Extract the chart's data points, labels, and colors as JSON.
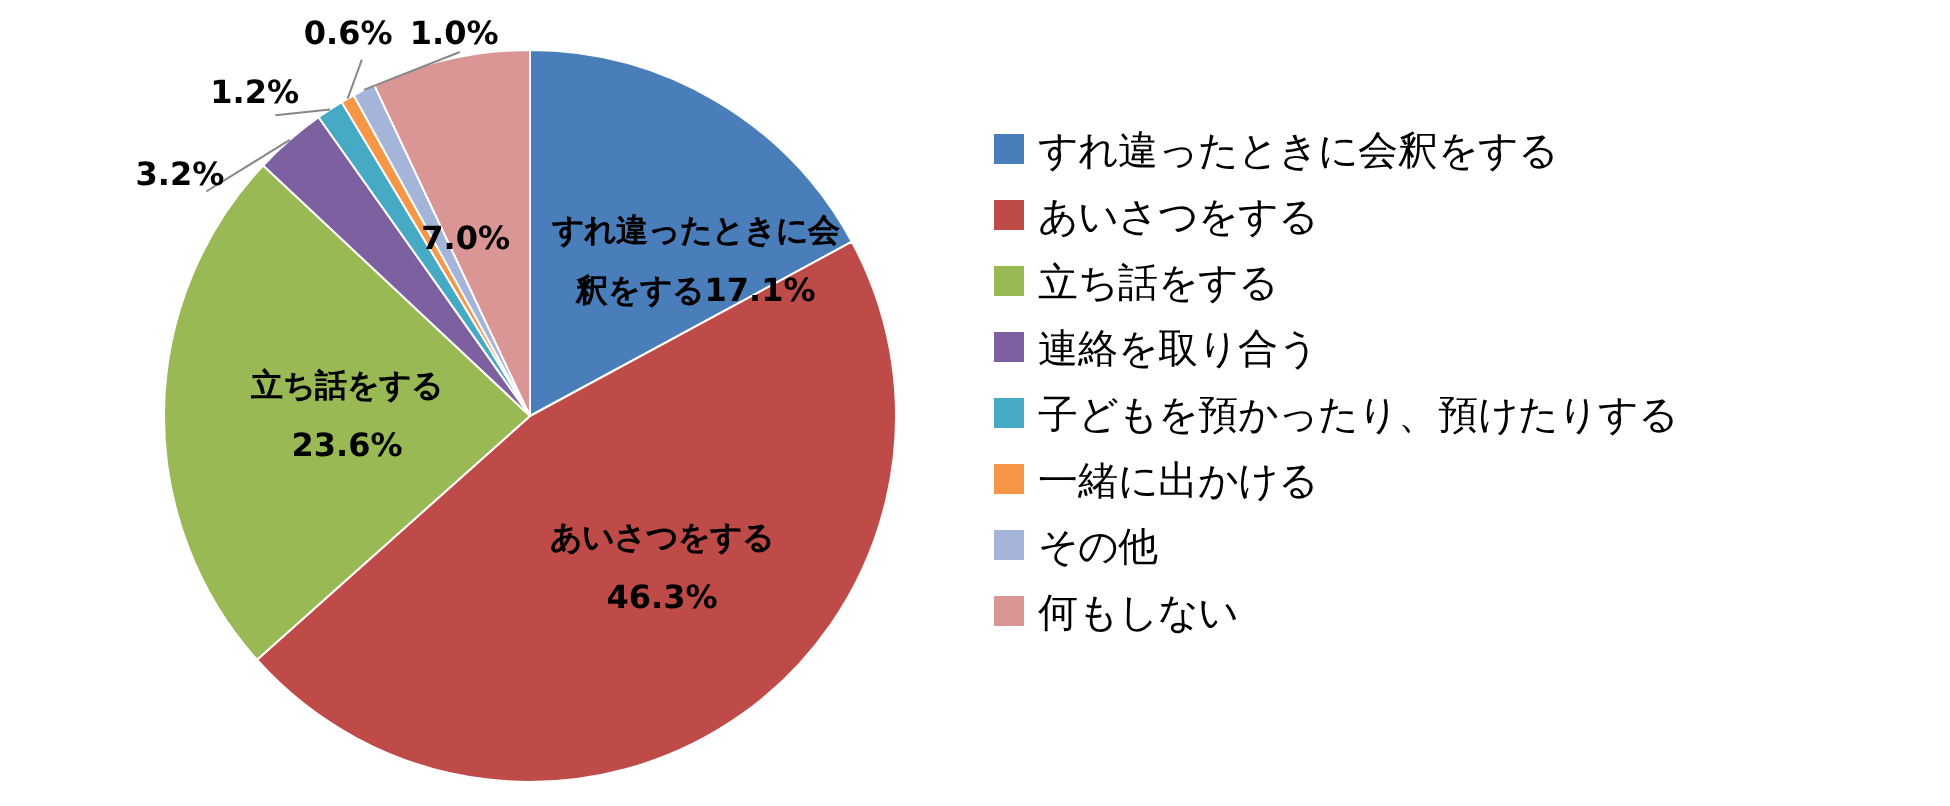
{
  "chart_data": {
    "type": "pie",
    "categories": [
      "すれ違ったときに会釈をする",
      "あいさつをする",
      "立ち話をする",
      "連絡を取り合う",
      "子どもを預かったり、預けたりする",
      "一緒に出かける",
      "その他",
      "何もしない"
    ],
    "values": [
      17.1,
      46.3,
      23.6,
      3.2,
      1.2,
      0.6,
      1.0,
      7.0
    ],
    "colors": [
      "#4a7ebb",
      "#be4b48",
      "#98b954",
      "#7d60a0",
      "#46aac5",
      "#f79646",
      "#a5b4d9",
      "#d99694"
    ],
    "value_labels": [
      "すれ違ったときに会釈をする17.1%",
      "あいさつをする 46.3%",
      "立ち話をする 23.6%",
      "3.2%",
      "1.2%",
      "0.6%",
      "1.0%",
      "7.0%"
    ],
    "legend": "right"
  }
}
